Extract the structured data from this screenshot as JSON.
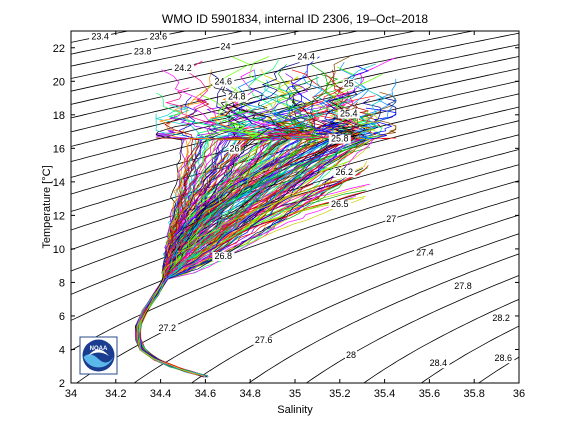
{
  "chart_data": {
    "type": "line",
    "title": "WMO ID 5901834, internal ID 2306, 19–Oct–2018",
    "xlabel": "Salinity",
    "ylabel": "Temperature [°C]",
    "xlim": [
      34,
      36
    ],
    "ylim": [
      2,
      23
    ],
    "xticks": [
      "34",
      "34.2",
      "34.4",
      "34.6",
      "34.8",
      "35",
      "35.2",
      "35.4",
      "35.6",
      "35.8",
      "36"
    ],
    "yticks": [
      "2",
      "4",
      "6",
      "8",
      "10",
      "12",
      "14",
      "16",
      "18",
      "20",
      "22"
    ],
    "grid": false,
    "legend": "none",
    "density_contours": [
      {
        "label": "23.4",
        "x": 34.13,
        "y": 22.5
      },
      {
        "label": "23.6",
        "x": 34.39,
        "y": 22.5
      },
      {
        "label": "23.8",
        "x": 34.32,
        "y": 21.6
      },
      {
        "label": "24",
        "x": 34.69,
        "y": 21.9
      },
      {
        "label": "24.2",
        "x": 34.5,
        "y": 20.6
      },
      {
        "label": "24.4",
        "x": 35.05,
        "y": 21.3
      },
      {
        "label": "24.6",
        "x": 34.68,
        "y": 19.8
      },
      {
        "label": "24.8",
        "x": 34.74,
        "y": 18.9
      },
      {
        "label": "25",
        "x": 35.24,
        "y": 19.7
      },
      {
        "label": "25.4",
        "x": 35.24,
        "y": 17.9
      },
      {
        "label": "25.8",
        "x": 35.2,
        "y": 16.4
      },
      {
        "label": "26",
        "x": 34.73,
        "y": 15.8
      },
      {
        "label": "26.2",
        "x": 35.22,
        "y": 14.4
      },
      {
        "label": "26.5",
        "x": 35.2,
        "y": 12.5
      },
      {
        "label": "27",
        "x": 35.43,
        "y": 11.6
      },
      {
        "label": "26.8",
        "x": 34.68,
        "y": 9.4
      },
      {
        "label": "27.4",
        "x": 35.58,
        "y": 9.6
      },
      {
        "label": "27.8",
        "x": 35.75,
        "y": 7.6
      },
      {
        "label": "28.2",
        "x": 35.92,
        "y": 5.7
      },
      {
        "label": "27.2",
        "x": 34.43,
        "y": 5.1
      },
      {
        "label": "27.6",
        "x": 34.86,
        "y": 4.4
      },
      {
        "label": "28",
        "x": 35.25,
        "y": 3.5
      },
      {
        "label": "28.4",
        "x": 35.64,
        "y": 3.0
      },
      {
        "label": "28.6",
        "x": 35.93,
        "y": 3.3
      }
    ],
    "profile_envelope": {
      "deep_trunk": [
        [
          34.6,
          2.4
        ],
        [
          34.52,
          2.7
        ],
        [
          34.45,
          3.0
        ],
        [
          34.38,
          3.4
        ],
        [
          34.32,
          4.0
        ],
        [
          34.3,
          4.6
        ],
        [
          34.3,
          5.4
        ],
        [
          34.33,
          6.3
        ],
        [
          34.38,
          7.3
        ],
        [
          34.42,
          8.2
        ]
      ],
      "fan_salinity_range": [
        34.38,
        35.35
      ],
      "fan_temperature_range": [
        8,
        21.5
      ]
    }
  },
  "logo": {
    "text": "NOAA"
  }
}
